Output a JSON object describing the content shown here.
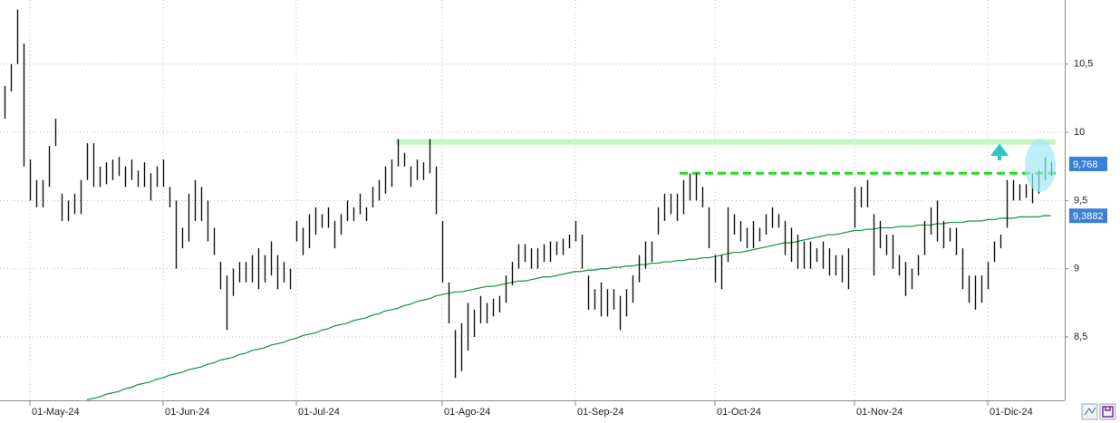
{
  "chart_data": {
    "type": "ohlc",
    "categories": [
      null,
      null,
      null,
      null,
      "01-May-24",
      null,
      null,
      null,
      null,
      null,
      null,
      null,
      null,
      null,
      null,
      null,
      null,
      null,
      null,
      null,
      null,
      null,
      null,
      null,
      null,
      "01-Jun-24",
      null,
      null,
      null,
      null,
      null,
      null,
      null,
      null,
      null,
      null,
      null,
      null,
      null,
      null,
      null,
      null,
      null,
      null,
      null,
      null,
      "01-Jul-24",
      null,
      null,
      null,
      null,
      null,
      null,
      null,
      null,
      null,
      null,
      null,
      null,
      null,
      null,
      null,
      null,
      null,
      null,
      null,
      null,
      null,
      null,
      "01-Ago-24",
      null,
      null,
      null,
      null,
      null,
      null,
      null,
      null,
      null,
      null,
      null,
      null,
      null,
      null,
      null,
      null,
      null,
      null,
      null,
      null,
      "01-Sep-24",
      null,
      null,
      null,
      null,
      null,
      null,
      null,
      null,
      null,
      null,
      null,
      null,
      null,
      null,
      null,
      null,
      null,
      null,
      null,
      null,
      null,
      "01-Oct-24",
      null,
      null,
      null,
      null,
      null,
      null,
      null,
      null,
      null,
      null,
      null,
      null,
      null,
      null,
      null,
      null,
      null,
      null,
      null,
      null,
      null,
      "01-Nov-24",
      null,
      null,
      null,
      null,
      null,
      null,
      null,
      null,
      null,
      null,
      null,
      null,
      null,
      null,
      null,
      null,
      null,
      null,
      null,
      null,
      "01-Dic-24",
      null,
      null,
      null,
      null,
      null,
      null,
      null,
      null,
      null,
      null
    ],
    "high": [
      10.34,
      10.5,
      10.9,
      10.65,
      9.8,
      9.65,
      9.65,
      9.9,
      10.1,
      9.55,
      9.5,
      9.55,
      9.65,
      9.92,
      9.92,
      9.75,
      9.78,
      9.8,
      9.82,
      9.75,
      9.8,
      9.72,
      9.78,
      9.7,
      9.75,
      9.8,
      9.6,
      9.5,
      9.3,
      9.55,
      9.65,
      9.6,
      9.5,
      9.3,
      9.05,
      8.95,
      9.0,
      9.05,
      9.05,
      9.1,
      9.15,
      9.1,
      9.2,
      9.1,
      9.05,
      9.0,
      9.35,
      9.3,
      9.4,
      9.45,
      9.4,
      9.45,
      9.35,
      9.4,
      9.5,
      9.45,
      9.55,
      9.45,
      9.6,
      9.65,
      9.75,
      9.8,
      9.95,
      9.85,
      9.75,
      9.8,
      9.78,
      9.95,
      9.75,
      9.35,
      8.9,
      8.55,
      8.6,
      8.75,
      8.7,
      8.8,
      8.75,
      8.78,
      8.8,
      8.95,
      9.05,
      9.18,
      9.18,
      9.15,
      9.15,
      9.18,
      9.2,
      9.2,
      9.22,
      9.25,
      9.35,
      9.25,
      8.95,
      8.85,
      8.9,
      8.85,
      8.85,
      8.8,
      8.85,
      8.95,
      9.1,
      9.2,
      9.2,
      9.45,
      9.55,
      9.55,
      9.55,
      9.65,
      9.7,
      9.7,
      9.6,
      9.45,
      9.1,
      9.1,
      9.45,
      9.4,
      9.35,
      9.3,
      9.35,
      9.3,
      9.4,
      9.45,
      9.4,
      9.35,
      9.3,
      9.25,
      9.2,
      9.2,
      9.15,
      9.2,
      9.15,
      9.1,
      9.1,
      9.15,
      9.6,
      9.6,
      9.65,
      9.4,
      9.35,
      9.25,
      9.25,
      9.1,
      9.05,
      9.0,
      9.1,
      9.35,
      9.45,
      9.5,
      9.35,
      9.3,
      9.3,
      9.15,
      8.95,
      8.95,
      8.95,
      9.05,
      9.2,
      9.25,
      9.65,
      9.65,
      9.62,
      9.62,
      9.7,
      9.72,
      9.82,
      9.78
    ],
    "low": [
      10.1,
      10.3,
      10.5,
      9.75,
      9.5,
      9.45,
      9.45,
      9.6,
      9.9,
      9.35,
      9.35,
      9.4,
      9.4,
      9.65,
      9.6,
      9.6,
      9.62,
      9.65,
      9.68,
      9.6,
      9.65,
      9.6,
      9.6,
      9.5,
      9.6,
      9.6,
      9.45,
      9.0,
      9.15,
      9.2,
      9.35,
      9.35,
      9.2,
      9.1,
      8.85,
      8.55,
      8.8,
      8.9,
      8.9,
      8.9,
      8.85,
      8.9,
      8.95,
      8.85,
      8.9,
      8.85,
      9.2,
      9.1,
      9.15,
      9.25,
      9.3,
      9.3,
      9.15,
      9.25,
      9.35,
      9.35,
      9.4,
      9.35,
      9.45,
      9.5,
      9.55,
      9.6,
      9.75,
      9.75,
      9.6,
      9.65,
      9.65,
      9.7,
      9.4,
      8.9,
      8.6,
      8.2,
      8.25,
      8.4,
      8.5,
      8.6,
      8.6,
      8.65,
      8.68,
      8.75,
      8.88,
      9.0,
      9.05,
      9.0,
      9.0,
      9.05,
      9.05,
      9.1,
      9.1,
      9.15,
      9.2,
      9.0,
      8.7,
      8.7,
      8.65,
      8.65,
      8.7,
      8.55,
      8.65,
      8.75,
      8.9,
      9.0,
      9.05,
      9.25,
      9.35,
      9.4,
      9.35,
      9.4,
      9.5,
      9.5,
      9.45,
      9.15,
      8.9,
      8.85,
      9.05,
      9.25,
      9.2,
      9.15,
      9.15,
      9.2,
      9.25,
      9.3,
      9.3,
      9.1,
      9.05,
      9.0,
      9.0,
      9.0,
      9.05,
      9.0,
      8.95,
      8.95,
      8.9,
      8.85,
      9.3,
      9.45,
      9.45,
      8.95,
      9.15,
      9.1,
      9.0,
      8.95,
      8.8,
      8.85,
      8.95,
      9.1,
      9.25,
      9.2,
      9.15,
      9.2,
      9.1,
      8.85,
      8.75,
      8.7,
      8.75,
      8.85,
      9.05,
      9.15,
      9.3,
      9.5,
      9.5,
      9.52,
      9.48,
      9.55,
      9.65,
      9.68
    ],
    "bar_color": "#111111",
    "ma": {
      "color": "#1f9a4f",
      "values": [
        null,
        null,
        null,
        null,
        null,
        null,
        null,
        null,
        null,
        null,
        null,
        null,
        null,
        8.04,
        8.05,
        8.06,
        8.08,
        8.09,
        8.1,
        8.12,
        8.13,
        8.15,
        8.16,
        8.17,
        8.19,
        8.2,
        8.22,
        8.23,
        8.24,
        8.26,
        8.27,
        8.28,
        8.3,
        8.31,
        8.33,
        8.34,
        8.35,
        8.37,
        8.38,
        8.4,
        8.41,
        8.42,
        8.44,
        8.45,
        8.46,
        8.48,
        8.49,
        8.51,
        8.52,
        8.53,
        8.55,
        8.56,
        8.58,
        8.59,
        8.6,
        8.62,
        8.63,
        8.64,
        8.66,
        8.67,
        8.69,
        8.7,
        8.71,
        8.73,
        8.74,
        8.76,
        8.77,
        8.78,
        8.8,
        8.81,
        8.82,
        8.83,
        8.83,
        8.84,
        8.85,
        8.86,
        8.87,
        8.87,
        8.88,
        8.89,
        8.9,
        8.91,
        8.91,
        8.92,
        8.93,
        8.94,
        8.94,
        8.95,
        8.96,
        8.97,
        8.98,
        8.98,
        8.99,
        8.99,
        9.0,
        9.0,
        9.01,
        9.01,
        9.02,
        9.02,
        9.03,
        9.03,
        9.04,
        9.04,
        9.05,
        9.05,
        9.06,
        9.06,
        9.07,
        9.07,
        9.08,
        9.08,
        9.09,
        9.1,
        9.11,
        9.12,
        9.12,
        9.13,
        9.14,
        9.15,
        9.16,
        9.17,
        9.18,
        9.19,
        9.19,
        9.2,
        9.21,
        9.22,
        9.23,
        9.24,
        9.25,
        9.25,
        9.26,
        9.27,
        9.28,
        9.28,
        9.29,
        9.29,
        9.3,
        9.3,
        9.3,
        9.31,
        9.31,
        9.31,
        9.32,
        9.32,
        9.32,
        9.33,
        9.33,
        9.34,
        9.34,
        9.34,
        9.35,
        9.35,
        9.35,
        9.36,
        9.36,
        9.37,
        9.37,
        9.37,
        9.38,
        9.38,
        9.38,
        9.38,
        9.39,
        9.3882
      ]
    },
    "last_price": {
      "value": 9.768,
      "label": "9,768"
    },
    "ma_label": {
      "value": 9.3882,
      "label": "9,3882"
    },
    "levels": [
      {
        "value": 9.93,
        "color": "#c4f5c4",
        "dashed": false
      },
      {
        "value": 9.7,
        "color": "#22dd22",
        "dashed": true
      }
    ],
    "ylim": [
      8.035,
      10.97
    ],
    "yticks": [
      {
        "value": 8.5,
        "label": "8,5"
      },
      9,
      {
        "value": 9.5,
        "label": "9,5"
      },
      10,
      {
        "value": 10.5,
        "label": "10,5"
      }
    ],
    "grid": true
  }
}
